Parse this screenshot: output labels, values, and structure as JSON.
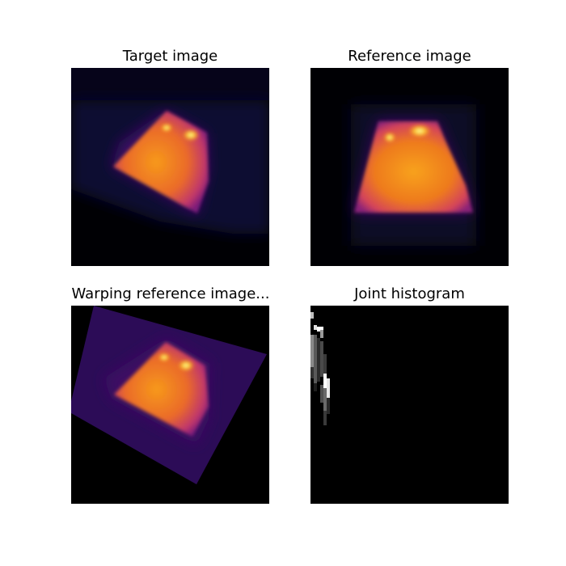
{
  "figure": {
    "panels": [
      {
        "id": "target",
        "title": "Target image",
        "colormap": "inferno"
      },
      {
        "id": "reference",
        "title": "Reference image",
        "colormap": "inferno"
      },
      {
        "id": "warping",
        "title": "Warping reference image...",
        "colormap": "inferno"
      },
      {
        "id": "histogram",
        "title": "Joint histogram",
        "colormap": "gray"
      }
    ],
    "colors": {
      "background": "#ffffff",
      "image_dark": "#000004",
      "inferno_purple": "#2b0b57",
      "inferno_orange": "#f37819",
      "inferno_yellow": "#fcffa4"
    }
  }
}
